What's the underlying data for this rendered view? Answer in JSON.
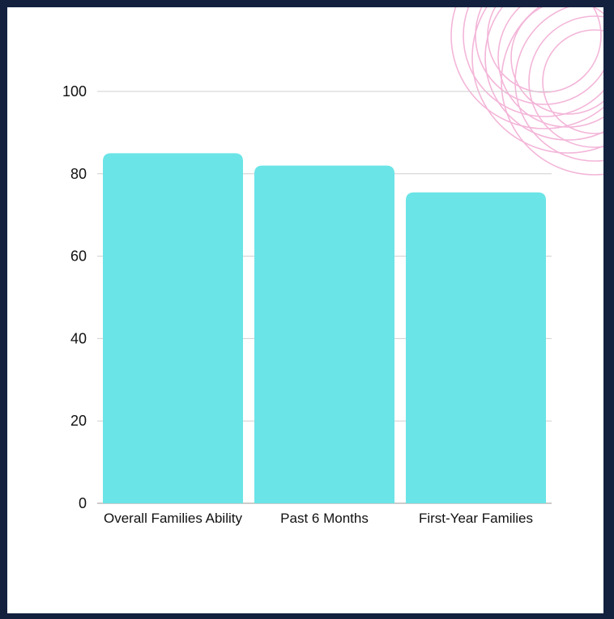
{
  "colors": {
    "frame": "#13213f",
    "bar": "#6be4e7",
    "grid": "#cfcfcf",
    "decor": "#f3b6d9"
  },
  "decoration": {
    "name": "pink-concentric-arcs",
    "icon": "arc-pattern"
  },
  "chart_data": {
    "type": "bar",
    "title": "",
    "xlabel": "",
    "ylabel": "",
    "categories": [
      "Overall Families Ability",
      "Past 6 Months",
      "First-Year Families"
    ],
    "values": [
      85,
      82,
      75.5
    ],
    "ylim": [
      0,
      100
    ],
    "yticks": [
      0,
      20,
      40,
      60,
      80,
      100
    ],
    "grid": true,
    "legend": "none"
  }
}
